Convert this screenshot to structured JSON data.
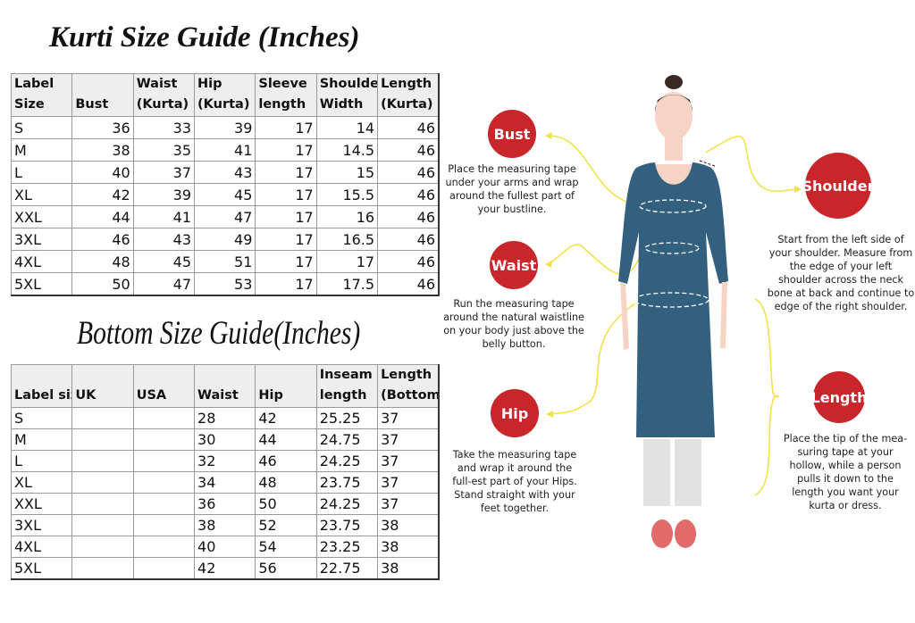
{
  "kurti": {
    "title": "Kurti Size Guide (Inches)",
    "headers": [
      [
        "Label",
        "Size"
      ],
      [
        "",
        "Bust"
      ],
      [
        "Waist",
        "(Kurta)"
      ],
      [
        "Hip",
        "(Kurta)"
      ],
      [
        "Sleeve",
        "length"
      ],
      [
        "Shoulder",
        "Width"
      ],
      [
        "Length",
        "(Kurta)"
      ]
    ],
    "rows": [
      [
        "S",
        "36",
        "33",
        "39",
        "17",
        "14",
        "46"
      ],
      [
        "M",
        "38",
        "35",
        "41",
        "17",
        "14.5",
        "46"
      ],
      [
        "L",
        "40",
        "37",
        "43",
        "17",
        "15",
        "46"
      ],
      [
        "XL",
        "42",
        "39",
        "45",
        "17",
        "15.5",
        "46"
      ],
      [
        "XXL",
        "44",
        "41",
        "47",
        "17",
        "16",
        "46"
      ],
      [
        "3XL",
        "46",
        "43",
        "49",
        "17",
        "16.5",
        "46"
      ],
      [
        "4XL",
        "48",
        "45",
        "51",
        "17",
        "17",
        "46"
      ],
      [
        "5XL",
        "50",
        "47",
        "53",
        "17",
        "17.5",
        "46"
      ]
    ]
  },
  "bottom": {
    "title": "Bottom Size Guide(Inches)",
    "headers": [
      [
        "",
        "Label size"
      ],
      [
        "",
        "UK"
      ],
      [
        "",
        "USA"
      ],
      [
        "",
        "Waist"
      ],
      [
        "",
        "Hip"
      ],
      [
        "Inseam",
        "length"
      ],
      [
        "Length",
        "(Bottom)"
      ]
    ],
    "rows": [
      [
        "S",
        "",
        "",
        "28",
        "42",
        "25.25",
        "37"
      ],
      [
        "M",
        "",
        "",
        "30",
        "44",
        "24.75",
        "37"
      ],
      [
        "L",
        "",
        "",
        "32",
        "46",
        "24.25",
        "37"
      ],
      [
        "XL",
        "",
        "",
        "34",
        "48",
        "23.75",
        "37"
      ],
      [
        "XXL",
        "",
        "",
        "36",
        "50",
        "24.25",
        "37"
      ],
      [
        "3XL",
        "",
        "",
        "38",
        "52",
        "23.75",
        "38"
      ],
      [
        "4XL",
        "",
        "",
        "40",
        "54",
        "23.25",
        "38"
      ],
      [
        "5XL",
        "",
        "",
        "42",
        "56",
        "22.75",
        "38"
      ]
    ]
  },
  "guide": {
    "bust": {
      "label": "Bust",
      "text": "Place the measuring tape under your arms and wrap around the fullest part of your bustline."
    },
    "waist": {
      "label": "Waist",
      "text": "Run the measuring tape around the natural waistline on your body just above the belly button."
    },
    "hip": {
      "label": "Hip",
      "text": "Take the measuring tape and wrap it around the full-est part of your Hips. Stand straight with your feet together."
    },
    "shoulder": {
      "label": "Shoulder",
      "text": "Start from the left side of your shoulder. Measure from the edge of your left shoulder across the neck bone at back and continue to edge of the right shoulder."
    },
    "length": {
      "label": "Length",
      "text": "Place the tip of the mea-suring tape at your hollow, while a person pulls it down to the length you want your kurta or dress."
    }
  },
  "colors": {
    "badge": "#c8262b",
    "kurta": "#33607f",
    "arrow": "#f2e14a",
    "skin": "#f6d3c4",
    "pants": "#e2e2e2",
    "shoes": "#e26a6a"
  }
}
